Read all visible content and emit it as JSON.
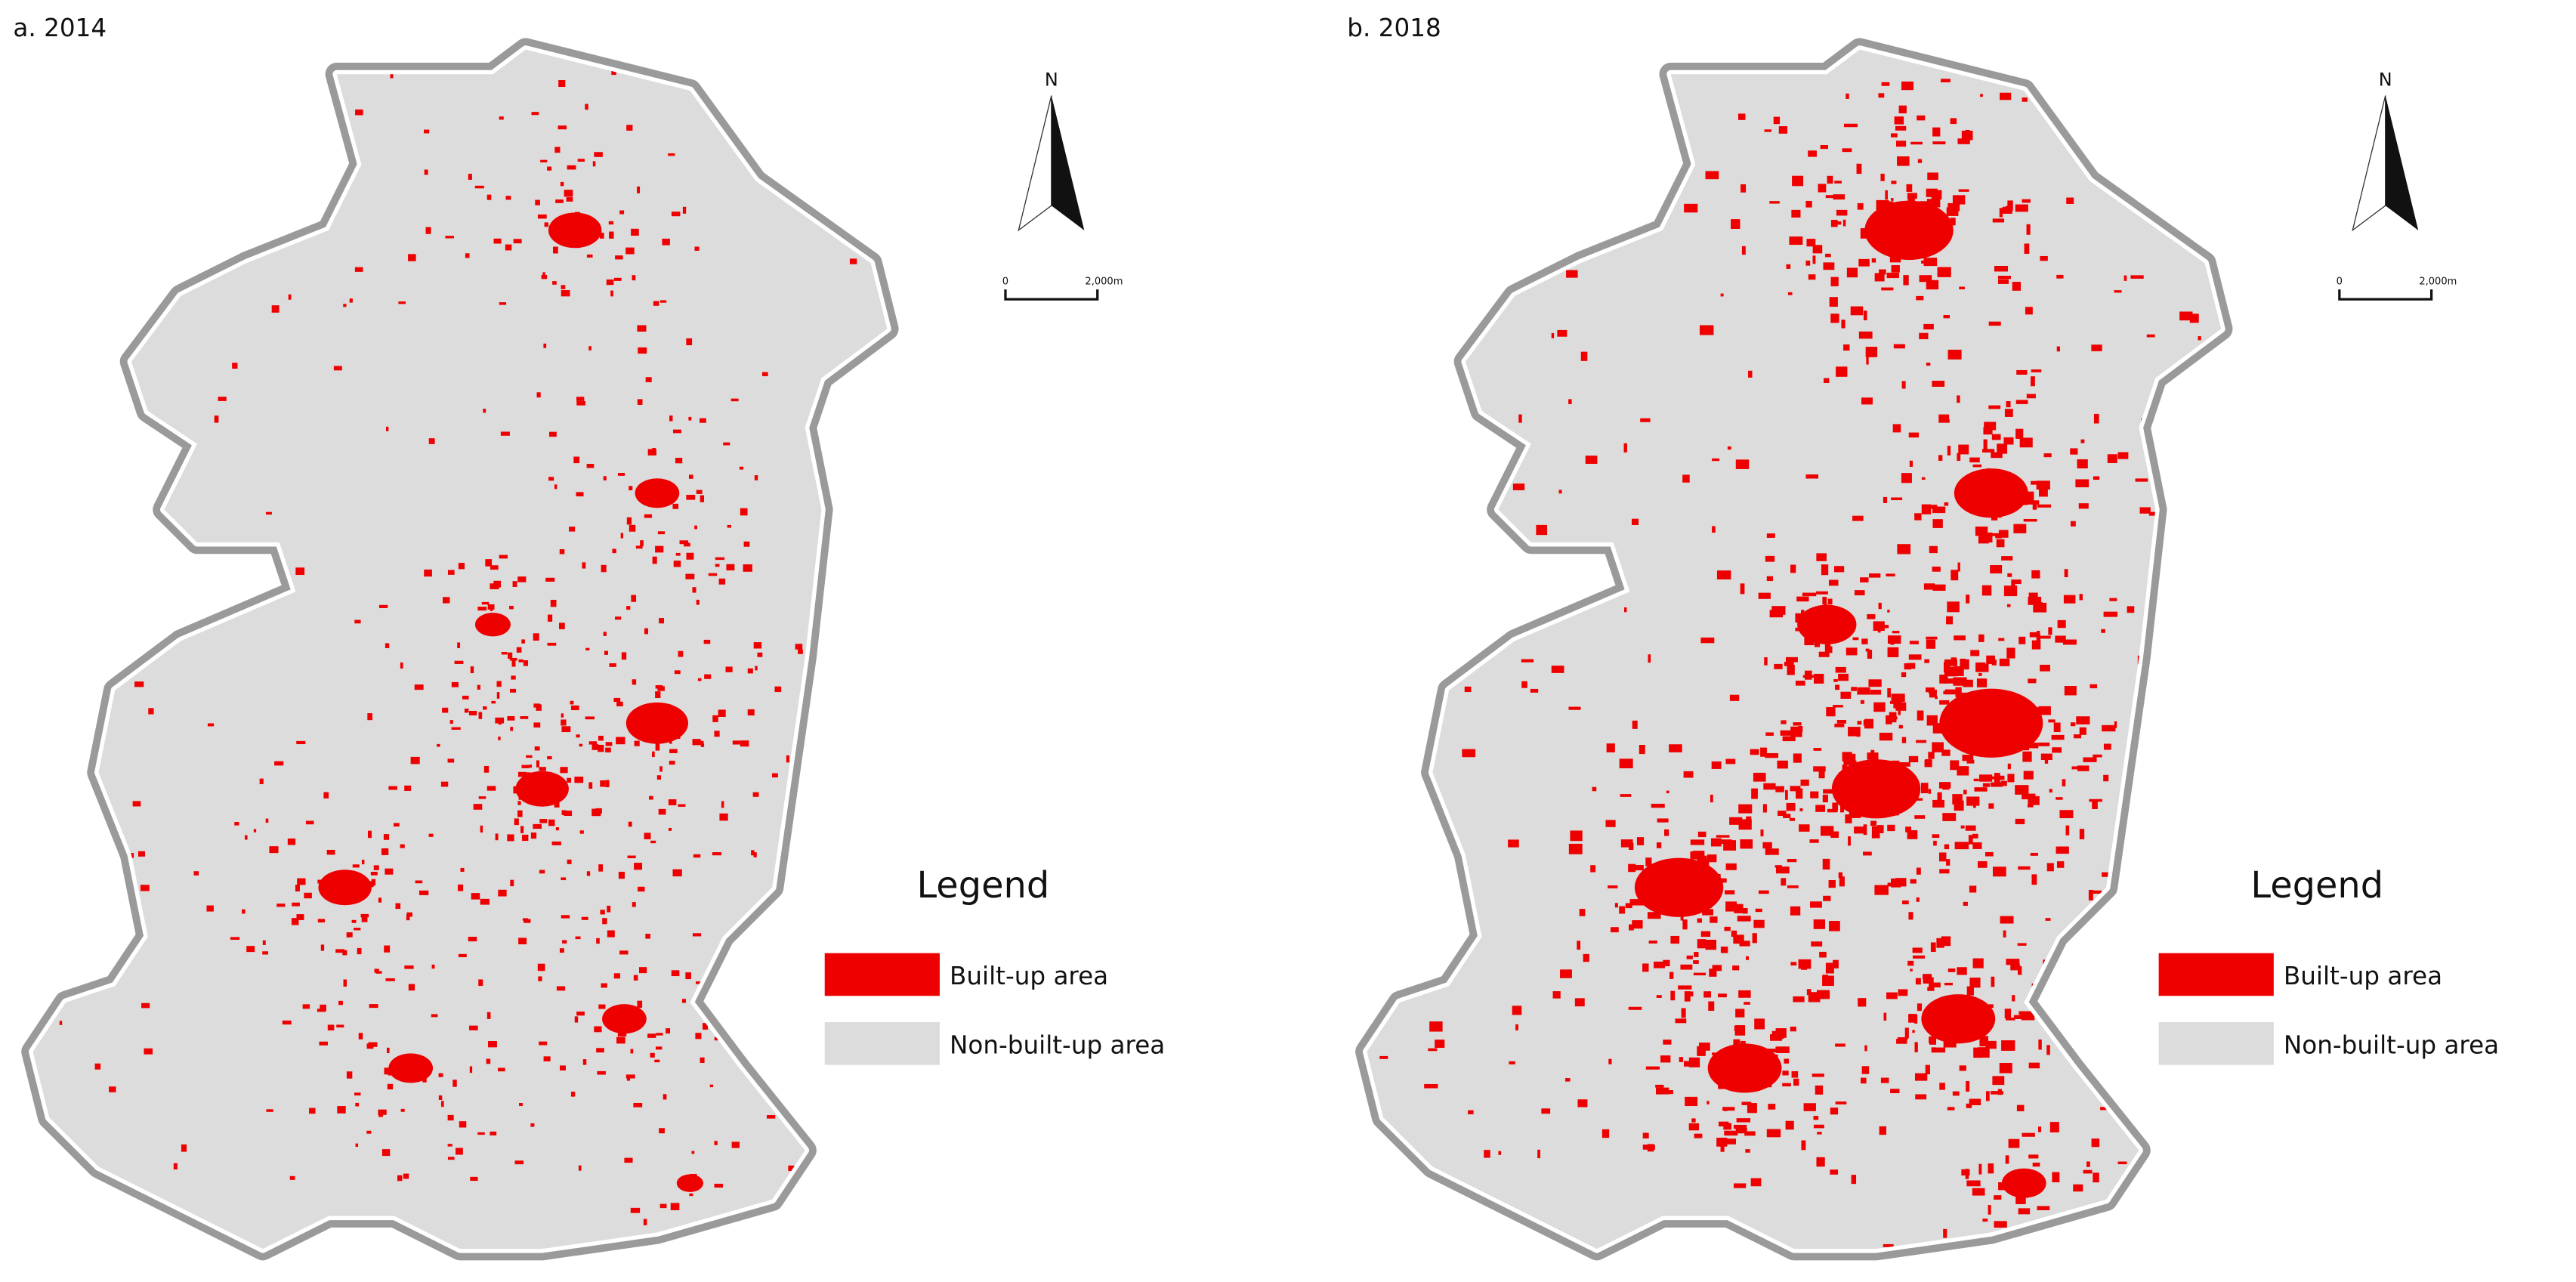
{
  "panels": [
    {
      "title": "a. 2014",
      "north": "N",
      "scale_bar": [
        "0",
        "2,000m"
      ],
      "legend": {
        "title": "Legend",
        "items": [
          "Built-up area",
          "Non-built-up area"
        ]
      }
    },
    {
      "title": "b. 2018",
      "north": "N",
      "scale_bar": [
        "0",
        "2,000m"
      ],
      "legend": {
        "title": "Legend",
        "items": [
          "Built-up area",
          "Non-built-up area"
        ]
      }
    }
  ]
}
